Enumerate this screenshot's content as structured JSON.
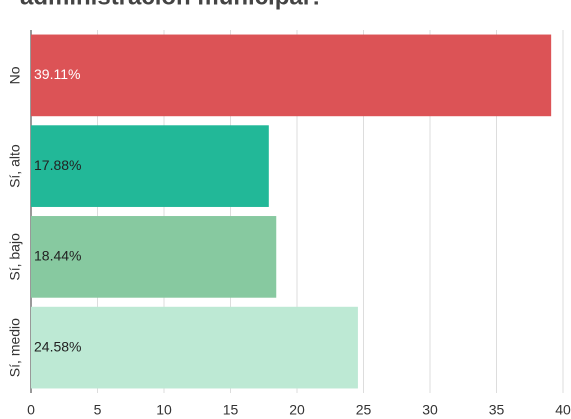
{
  "chart_data": {
    "type": "barh",
    "title": "administración municipal?",
    "categories": [
      "No",
      "Sí, alto",
      "Sí, bajo",
      "Sí, medio"
    ],
    "values": [
      39.11,
      17.88,
      18.44,
      24.58
    ],
    "value_labels": [
      "39.11%",
      "17.88%",
      "18.44%",
      "24.58%"
    ],
    "colors": [
      "#dc5356",
      "#22b898",
      "#87c9a0",
      "#bde9d4"
    ],
    "label_colors": [
      "#ffffff",
      "#222222",
      "#222222",
      "#222222"
    ],
    "xlim": [
      0,
      40
    ],
    "xticks": [
      0,
      5,
      10,
      15,
      20,
      25,
      30,
      35,
      40
    ],
    "grid": true
  }
}
